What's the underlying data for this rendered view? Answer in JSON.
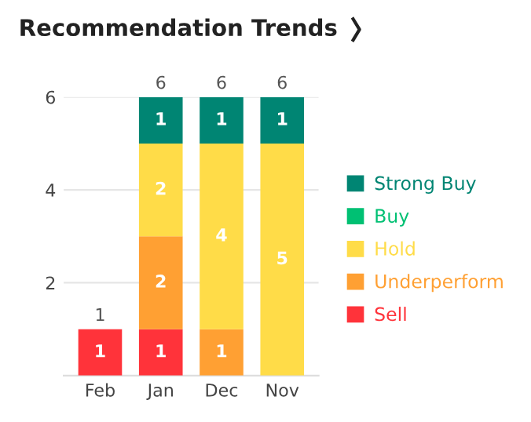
{
  "chart_data": {
    "type": "bar",
    "title": "Recommendation Trends",
    "stacked": true,
    "categories": [
      "Feb",
      "Jan",
      "Dec",
      "Nov"
    ],
    "series": [
      {
        "name": "Sell",
        "color": "#ff333a",
        "values": [
          1,
          1,
          0,
          0
        ],
        "value_labels": [
          "1",
          "1",
          null,
          null
        ]
      },
      {
        "name": "Underperform",
        "color": "#ffa033",
        "values": [
          0,
          2,
          1,
          0
        ],
        "value_labels": [
          null,
          "2",
          "1",
          null
        ]
      },
      {
        "name": "Hold",
        "color": "#ffdc48",
        "values": [
          0,
          2,
          4,
          5
        ],
        "value_labels": [
          null,
          "2",
          "4",
          "5"
        ]
      },
      {
        "name": "Buy",
        "color": "#00c073",
        "values": [
          0,
          0,
          0,
          0
        ],
        "value_labels": [
          null,
          null,
          null,
          null
        ]
      },
      {
        "name": "Strong Buy",
        "color": "#008573",
        "values": [
          0,
          1,
          1,
          1
        ],
        "value_labels": [
          null,
          "1",
          "1",
          "1"
        ]
      }
    ],
    "totals": [
      "1",
      "6",
      "6",
      "6"
    ],
    "ylim": [
      0,
      6
    ],
    "yticks": [
      2,
      4,
      6
    ],
    "grid": "y",
    "legend": "right"
  }
}
